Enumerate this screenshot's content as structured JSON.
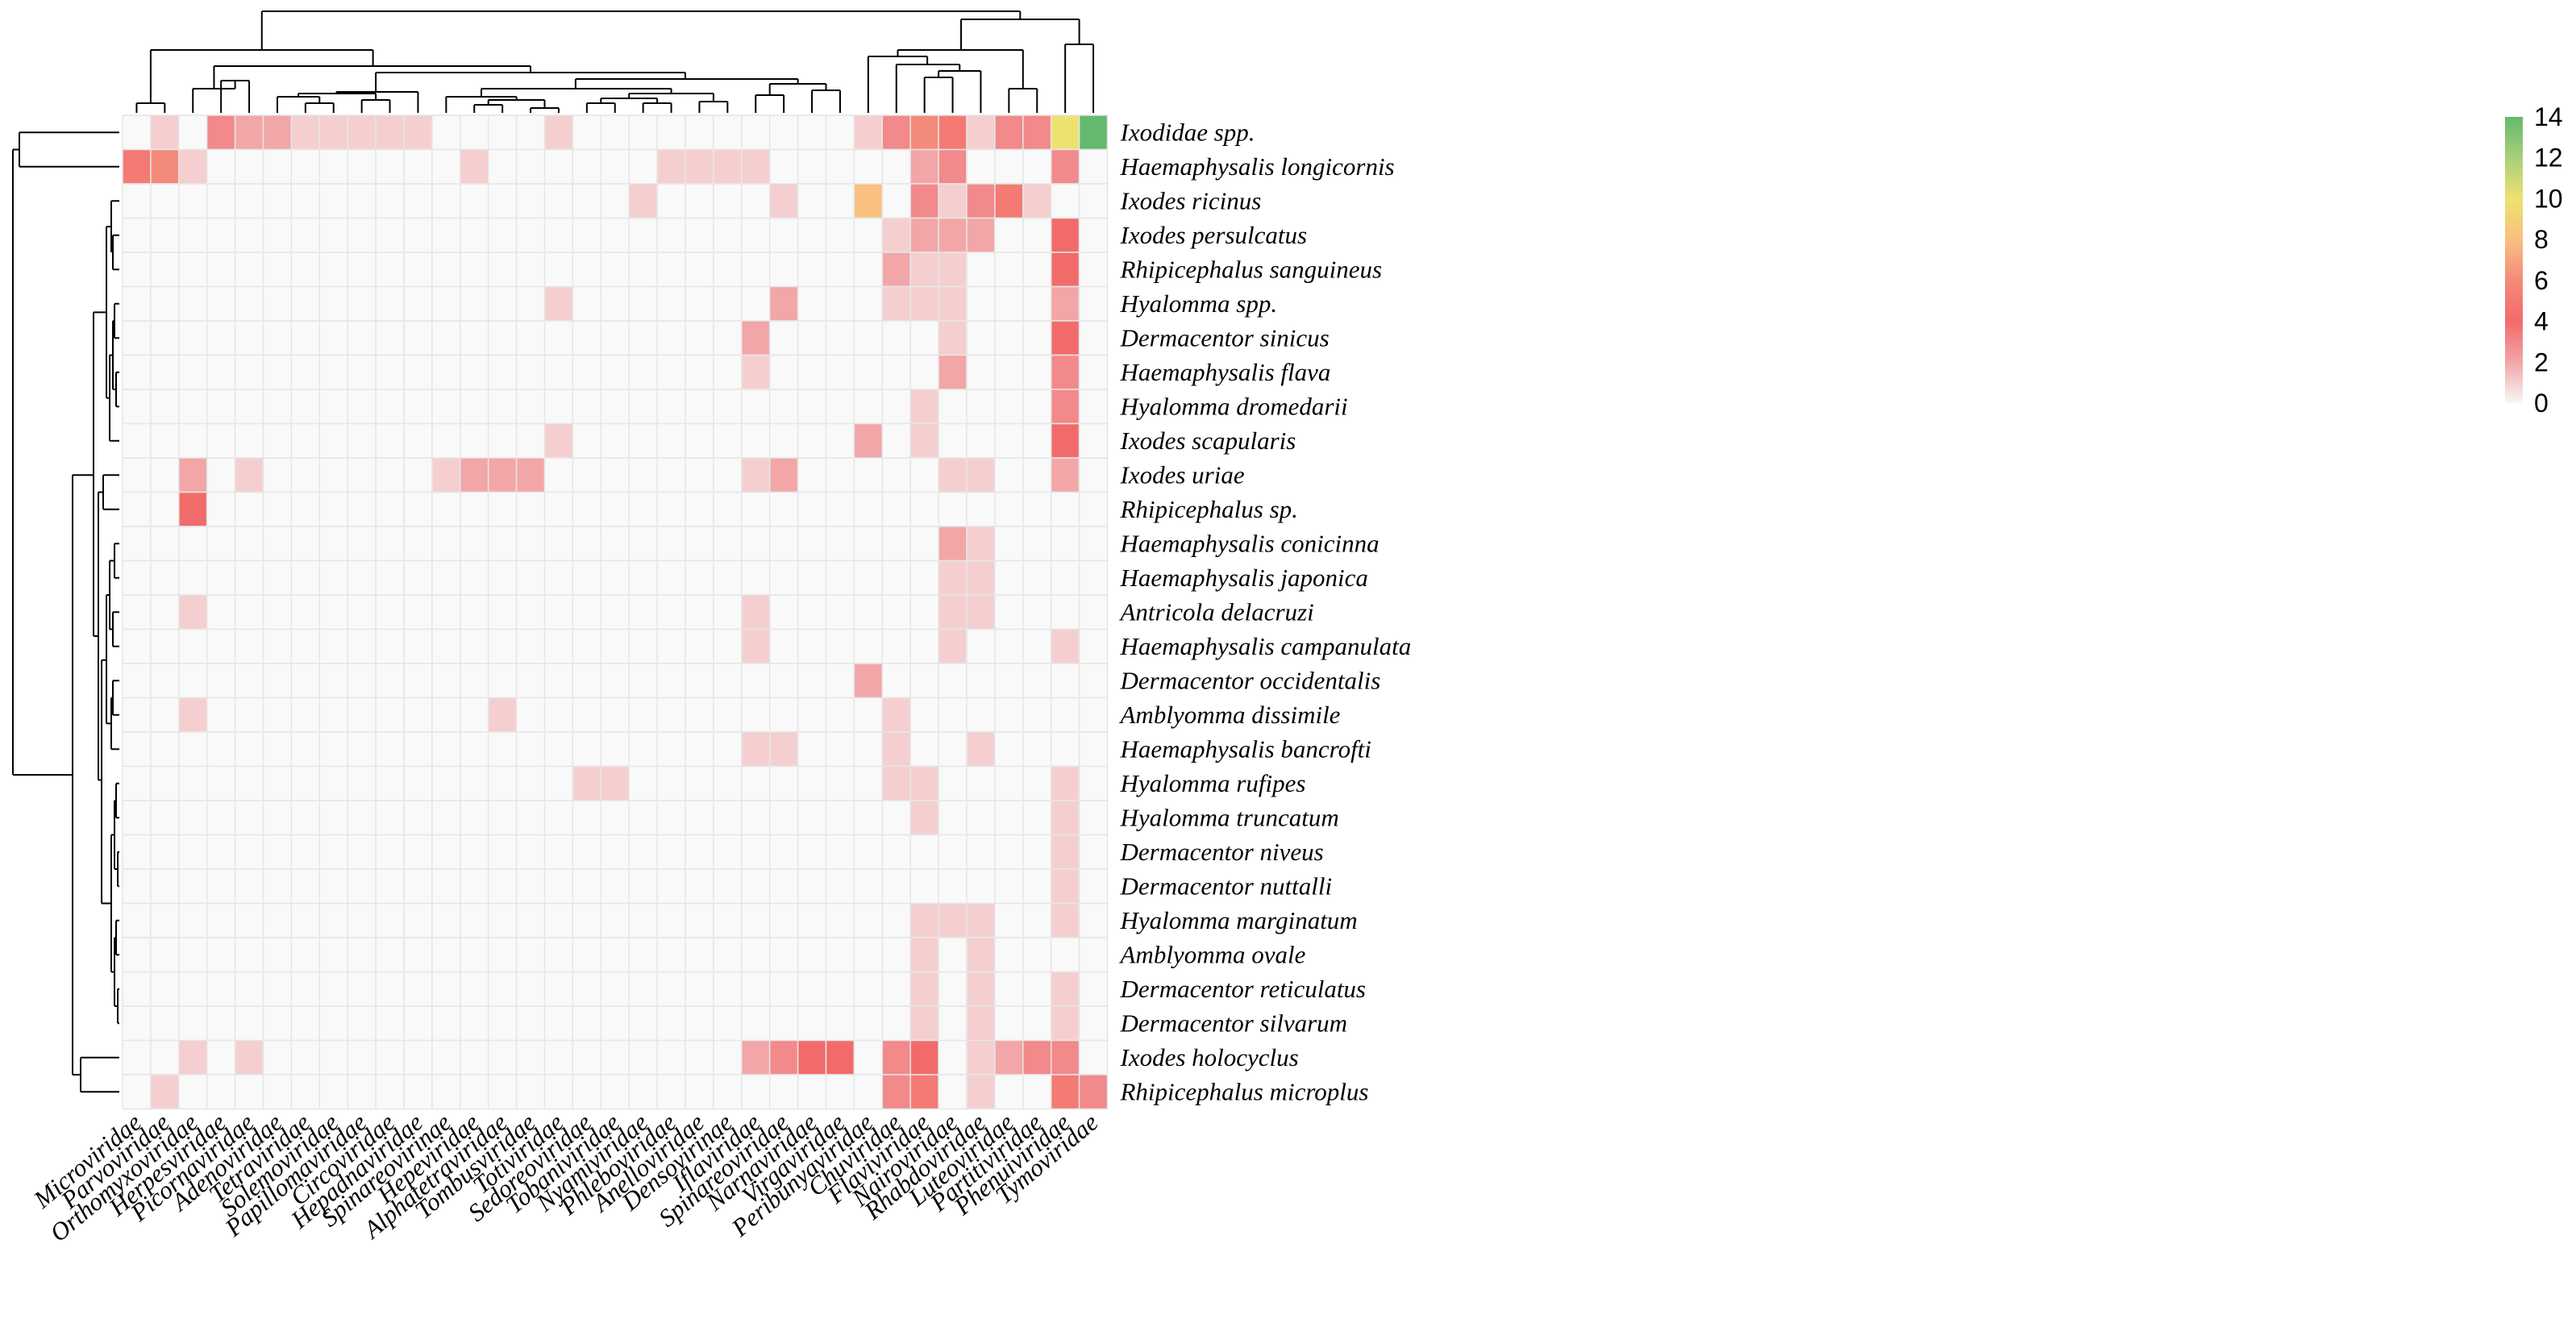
{
  "chart_data": {
    "type": "heatmap",
    "title": "",
    "xlabel": "",
    "ylabel": "",
    "columns": [
      "Microviridae",
      "Parvoviridae",
      "Orthomyxoviridae",
      "Herpesviridae",
      "Picornaviridae",
      "Adenoviridae",
      "Tetraviridae",
      "Solemoviridae",
      "Papillomaviridae",
      "Circoviridae",
      "Hepadnaviridae",
      "Spinareovirinae",
      "Hepeviridae",
      "Alphatetraviridae",
      "Tombusviridae",
      "Totiviridae",
      "Sedoreoviridae",
      "Tobaniviridae",
      "Nyamiviridae",
      "Phleboviridae",
      "Anelloviridae",
      "Densovirinae",
      "Iflaviridae",
      "Spinareoviridae",
      "Narnaviridae",
      "Virgaviridae",
      "Peribunyaviridae",
      "Chuviridae",
      "Flaviviridae",
      "Nairoviridae",
      "Rhabdoviridae",
      "Luteoviridae",
      "Partitiviridae",
      "Phenuiviridae",
      "Tymoviridae"
    ],
    "rows": [
      "Ixodidae spp.",
      "Haemaphysalis longicornis",
      "Ixodes ricinus",
      "Ixodes persulcatus",
      "Rhipicephalus sanguineus",
      "Hyalomma spp.",
      "Dermacentor sinicus",
      "Haemaphysalis flava",
      "Hyalomma dromedarii",
      "Ixodes scapularis",
      "Ixodes uriae",
      "Rhipicephalus sp.",
      "Haemaphysalis conicinna",
      "Haemaphysalis japonica",
      "Antricola delacruzi",
      "Haemaphysalis campanulata",
      "Dermacentor occidentalis",
      "Amblyomma dissimile",
      "Haemaphysalis bancrofti",
      "Hyalomma rufipes",
      "Hyalomma truncatum",
      "Dermacentor niveus",
      "Dermacentor nuttalli",
      "Hyalomma marginatum",
      "Amblyomma ovale",
      "Dermacentor reticulatus",
      "Dermacentor silvarum",
      "Ixodes holocyclus",
      "Rhipicephalus microplus"
    ],
    "values": [
      [
        0,
        1,
        0,
        3,
        2,
        2,
        1,
        1,
        1,
        1,
        1,
        0,
        0,
        0,
        0,
        1,
        0,
        0,
        0,
        0,
        0,
        0,
        0,
        0,
        0,
        0,
        1,
        3,
        6,
        5,
        1,
        3,
        3,
        10,
        14
      ],
      [
        5,
        6,
        1,
        0,
        0,
        0,
        0,
        0,
        0,
        0,
        0,
        0,
        1,
        0,
        0,
        0,
        0,
        0,
        0,
        1,
        1,
        1,
        1,
        0,
        0,
        0,
        0,
        0,
        2,
        3,
        0,
        0,
        0,
        3,
        0
      ],
      [
        0,
        0,
        0,
        0,
        0,
        0,
        0,
        0,
        0,
        0,
        0,
        0,
        0,
        0,
        0,
        0,
        0,
        0,
        1,
        0,
        0,
        0,
        0,
        1,
        0,
        0,
        8,
        0,
        3,
        1,
        3,
        5,
        1,
        0,
        0
      ],
      [
        0,
        0,
        0,
        0,
        0,
        0,
        0,
        0,
        0,
        0,
        0,
        0,
        0,
        0,
        0,
        0,
        0,
        0,
        0,
        0,
        0,
        0,
        0,
        0,
        0,
        0,
        0,
        1,
        2,
        2,
        2,
        0,
        0,
        4,
        0
      ],
      [
        0,
        0,
        0,
        0,
        0,
        0,
        0,
        0,
        0,
        0,
        0,
        0,
        0,
        0,
        0,
        0,
        0,
        0,
        0,
        0,
        0,
        0,
        0,
        0,
        0,
        0,
        0,
        2,
        1,
        1,
        0,
        0,
        0,
        4,
        0
      ],
      [
        0,
        0,
        0,
        0,
        0,
        0,
        0,
        0,
        0,
        0,
        0,
        0,
        0,
        0,
        0,
        1,
        0,
        0,
        0,
        0,
        0,
        0,
        0,
        2,
        0,
        0,
        0,
        1,
        1,
        1,
        0,
        0,
        0,
        2,
        0
      ],
      [
        0,
        0,
        0,
        0,
        0,
        0,
        0,
        0,
        0,
        0,
        0,
        0,
        0,
        0,
        0,
        0,
        0,
        0,
        0,
        0,
        0,
        0,
        2,
        0,
        0,
        0,
        0,
        0,
        0,
        1,
        0,
        0,
        0,
        4,
        0
      ],
      [
        0,
        0,
        0,
        0,
        0,
        0,
        0,
        0,
        0,
        0,
        0,
        0,
        0,
        0,
        0,
        0,
        0,
        0,
        0,
        0,
        0,
        0,
        1,
        0,
        0,
        0,
        0,
        0,
        0,
        2,
        0,
        0,
        0,
        3,
        0
      ],
      [
        0,
        0,
        0,
        0,
        0,
        0,
        0,
        0,
        0,
        0,
        0,
        0,
        0,
        0,
        0,
        0,
        0,
        0,
        0,
        0,
        0,
        0,
        0,
        0,
        0,
        0,
        0,
        0,
        1,
        0,
        0,
        0,
        0,
        3,
        0
      ],
      [
        0,
        0,
        0,
        0,
        0,
        0,
        0,
        0,
        0,
        0,
        0,
        0,
        0,
        0,
        0,
        1,
        0,
        0,
        0,
        0,
        0,
        0,
        0,
        0,
        0,
        0,
        2,
        0,
        1,
        0,
        0,
        0,
        0,
        4,
        0
      ],
      [
        0,
        0,
        2,
        0,
        1,
        0,
        0,
        0,
        0,
        0,
        0,
        1,
        2,
        2,
        2,
        0,
        0,
        0,
        0,
        0,
        0,
        0,
        1,
        2,
        0,
        0,
        0,
        0,
        0,
        1,
        1,
        0,
        0,
        2,
        0
      ],
      [
        0,
        0,
        4,
        0,
        0,
        0,
        0,
        0,
        0,
        0,
        0,
        0,
        0,
        0,
        0,
        0,
        0,
        0,
        0,
        0,
        0,
        0,
        0,
        0,
        0,
        0,
        0,
        0,
        0,
        0,
        0,
        0,
        0,
        0,
        0
      ],
      [
        0,
        0,
        0,
        0,
        0,
        0,
        0,
        0,
        0,
        0,
        0,
        0,
        0,
        0,
        0,
        0,
        0,
        0,
        0,
        0,
        0,
        0,
        0,
        0,
        0,
        0,
        0,
        0,
        0,
        2,
        1,
        0,
        0,
        0,
        0
      ],
      [
        0,
        0,
        0,
        0,
        0,
        0,
        0,
        0,
        0,
        0,
        0,
        0,
        0,
        0,
        0,
        0,
        0,
        0,
        0,
        0,
        0,
        0,
        0,
        0,
        0,
        0,
        0,
        0,
        0,
        1,
        1,
        0,
        0,
        0,
        0
      ],
      [
        0,
        0,
        1,
        0,
        0,
        0,
        0,
        0,
        0,
        0,
        0,
        0,
        0,
        0,
        0,
        0,
        0,
        0,
        0,
        0,
        0,
        0,
        1,
        0,
        0,
        0,
        0,
        0,
        0,
        1,
        1,
        0,
        0,
        0,
        0
      ],
      [
        0,
        0,
        0,
        0,
        0,
        0,
        0,
        0,
        0,
        0,
        0,
        0,
        0,
        0,
        0,
        0,
        0,
        0,
        0,
        0,
        0,
        0,
        1,
        0,
        0,
        0,
        0,
        0,
        0,
        1,
        0,
        0,
        0,
        1,
        0
      ],
      [
        0,
        0,
        0,
        0,
        0,
        0,
        0,
        0,
        0,
        0,
        0,
        0,
        0,
        0,
        0,
        0,
        0,
        0,
        0,
        0,
        0,
        0,
        0,
        0,
        0,
        0,
        2,
        0,
        0,
        0,
        0,
        0,
        0,
        0,
        0
      ],
      [
        0,
        0,
        1,
        0,
        0,
        0,
        0,
        0,
        0,
        0,
        0,
        0,
        0,
        1,
        0,
        0,
        0,
        0,
        0,
        0,
        0,
        0,
        0,
        0,
        0,
        0,
        0,
        1,
        0,
        0,
        0,
        0,
        0,
        0,
        0
      ],
      [
        0,
        0,
        0,
        0,
        0,
        0,
        0,
        0,
        0,
        0,
        0,
        0,
        0,
        0,
        0,
        0,
        0,
        0,
        0,
        0,
        0,
        0,
        1,
        1,
        0,
        0,
        0,
        1,
        0,
        0,
        1,
        0,
        0,
        0,
        0
      ],
      [
        0,
        0,
        0,
        0,
        0,
        0,
        0,
        0,
        0,
        0,
        0,
        0,
        0,
        0,
        0,
        0,
        1,
        1,
        0,
        0,
        0,
        0,
        0,
        0,
        0,
        0,
        0,
        1,
        1,
        0,
        0,
        0,
        0,
        1,
        0
      ],
      [
        0,
        0,
        0,
        0,
        0,
        0,
        0,
        0,
        0,
        0,
        0,
        0,
        0,
        0,
        0,
        0,
        0,
        0,
        0,
        0,
        0,
        0,
        0,
        0,
        0,
        0,
        0,
        0,
        1,
        0,
        0,
        0,
        0,
        1,
        0
      ],
      [
        0,
        0,
        0,
        0,
        0,
        0,
        0,
        0,
        0,
        0,
        0,
        0,
        0,
        0,
        0,
        0,
        0,
        0,
        0,
        0,
        0,
        0,
        0,
        0,
        0,
        0,
        0,
        0,
        0,
        0,
        0,
        0,
        0,
        1,
        0
      ],
      [
        0,
        0,
        0,
        0,
        0,
        0,
        0,
        0,
        0,
        0,
        0,
        0,
        0,
        0,
        0,
        0,
        0,
        0,
        0,
        0,
        0,
        0,
        0,
        0,
        0,
        0,
        0,
        0,
        0,
        0,
        0,
        0,
        0,
        1,
        0
      ],
      [
        0,
        0,
        0,
        0,
        0,
        0,
        0,
        0,
        0,
        0,
        0,
        0,
        0,
        0,
        0,
        0,
        0,
        0,
        0,
        0,
        0,
        0,
        0,
        0,
        0,
        0,
        0,
        0,
        1,
        1,
        1,
        0,
        0,
        1,
        0
      ],
      [
        0,
        0,
        0,
        0,
        0,
        0,
        0,
        0,
        0,
        0,
        0,
        0,
        0,
        0,
        0,
        0,
        0,
        0,
        0,
        0,
        0,
        0,
        0,
        0,
        0,
        0,
        0,
        0,
        1,
        0,
        1,
        0,
        0,
        0,
        0
      ],
      [
        0,
        0,
        0,
        0,
        0,
        0,
        0,
        0,
        0,
        0,
        0,
        0,
        0,
        0,
        0,
        0,
        0,
        0,
        0,
        0,
        0,
        0,
        0,
        0,
        0,
        0,
        0,
        0,
        1,
        0,
        1,
        0,
        0,
        1,
        0
      ],
      [
        0,
        0,
        0,
        0,
        0,
        0,
        0,
        0,
        0,
        0,
        0,
        0,
        0,
        0,
        0,
        0,
        0,
        0,
        0,
        0,
        0,
        0,
        0,
        0,
        0,
        0,
        0,
        0,
        1,
        0,
        1,
        0,
        0,
        1,
        0
      ],
      [
        0,
        0,
        1,
        0,
        1,
        0,
        0,
        0,
        0,
        0,
        0,
        0,
        0,
        0,
        0,
        0,
        0,
        0,
        0,
        0,
        0,
        0,
        2,
        3,
        4,
        4,
        0,
        3,
        4,
        0,
        1,
        2,
        3,
        3,
        0
      ],
      [
        0,
        1,
        0,
        0,
        0,
        0,
        0,
        0,
        0,
        0,
        0,
        0,
        0,
        0,
        0,
        0,
        0,
        0,
        0,
        0,
        0,
        0,
        0,
        0,
        0,
        0,
        0,
        3,
        5,
        0,
        1,
        0,
        0,
        5,
        3
      ]
    ],
    "colorbar": {
      "min": 0,
      "max": 14,
      "ticks": [
        0,
        2,
        4,
        6,
        8,
        10,
        12,
        14
      ],
      "colors": [
        "#f7f7f7",
        "#f2a6a8",
        "#f26b6b",
        "#f48a7a",
        "#f9c07f",
        "#ede270",
        "#a8d07a",
        "#63b96e"
      ]
    },
    "zero_color": "#f9f9f9",
    "grid_color": "#e6e6e6",
    "row_dendrogram": true,
    "column_dendrogram": true,
    "legend_position": "right"
  }
}
